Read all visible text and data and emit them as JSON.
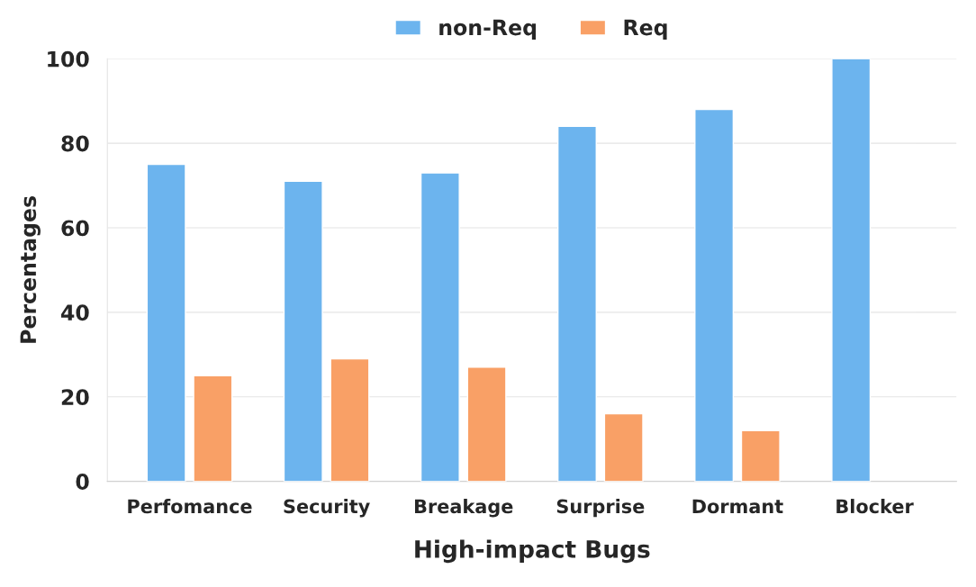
{
  "chart_data": {
    "type": "bar",
    "xlabel": "High-impact Bugs",
    "ylabel": "Percentages",
    "categories": [
      "Perfomance",
      "Security",
      "Breakage",
      "Surprise",
      "Dormant",
      "Blocker"
    ],
    "series": [
      {
        "name": "non-Req",
        "color": "#6cb4ee",
        "values": [
          75,
          71,
          73,
          84,
          88,
          100
        ]
      },
      {
        "name": "Req",
        "color": "#f9a066",
        "values": [
          25,
          29,
          27,
          16,
          12,
          null
        ]
      }
    ],
    "ylim": [
      0,
      100
    ],
    "yticks": [
      0,
      20,
      40,
      60,
      80,
      100
    ],
    "grid": "y",
    "legend": "top"
  }
}
